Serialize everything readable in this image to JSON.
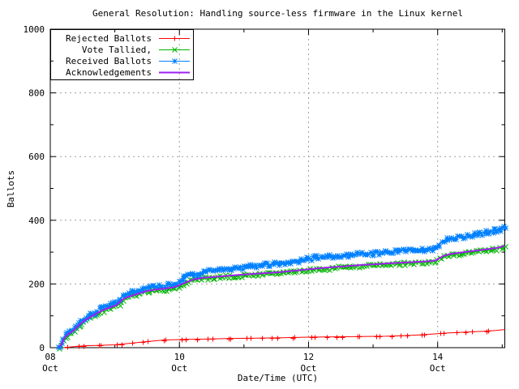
{
  "title": "General Resolution: Handling source-less firmware in the Linux kernel",
  "chart_data": {
    "type": "line",
    "title": "General Resolution: Handling source-less firmware in the Linux kernel",
    "xlabel": "Date/Time (UTC)",
    "ylabel": "Ballots",
    "x": {
      "domain_days": 7.04,
      "start_label": "08 Oct",
      "tick_days": [
        {
          "day": 0,
          "label": "08",
          "month": "Oct"
        },
        {
          "day": 2,
          "label": "10",
          "month": "Oct"
        },
        {
          "day": 4,
          "label": "12",
          "month": "Oct"
        },
        {
          "day": 6,
          "label": "14",
          "month": "Oct"
        }
      ],
      "minor_tick_days": [
        1,
        3,
        5,
        7
      ],
      "gridline_days": [
        2,
        4,
        6
      ]
    },
    "y": {
      "max": 1000,
      "major_step": 200,
      "minor_step": 100,
      "tick_labels": [
        "0",
        "200",
        "400",
        "600",
        "800",
        "1000"
      ],
      "gridlines": [
        200,
        400,
        600,
        800
      ]
    },
    "grid_on": true,
    "grid_color": "#9e9e9e",
    "frame_color": "#000000",
    "legend_position": "top-left-boxed",
    "series": [
      {
        "name": "Rejected Ballots",
        "color": "#ff0000",
        "marker": "plus",
        "points": [
          [
            0.2,
            0
          ],
          [
            0.3,
            2
          ],
          [
            0.4,
            4
          ],
          [
            0.55,
            6
          ],
          [
            0.7,
            7
          ],
          [
            0.85,
            8
          ],
          [
            1.0,
            9
          ],
          [
            1.15,
            12
          ],
          [
            1.3,
            15
          ],
          [
            1.45,
            18
          ],
          [
            1.6,
            21
          ],
          [
            1.75,
            24
          ],
          [
            1.9,
            25
          ],
          [
            2.1,
            26
          ],
          [
            2.4,
            27
          ],
          [
            2.8,
            29
          ],
          [
            3.2,
            30
          ],
          [
            3.6,
            31
          ],
          [
            4.0,
            33
          ],
          [
            4.4,
            34
          ],
          [
            4.8,
            35
          ],
          [
            5.2,
            36
          ],
          [
            5.5,
            38
          ],
          [
            5.8,
            41
          ],
          [
            6.0,
            44
          ],
          [
            6.15,
            46
          ],
          [
            6.35,
            48
          ],
          [
            6.55,
            50
          ],
          [
            6.75,
            52
          ],
          [
            6.9,
            54
          ],
          [
            7.04,
            57
          ]
        ]
      },
      {
        "name": "Vote Tallied,",
        "color": "#00b400",
        "marker": "x",
        "points": [
          [
            0.14,
            1
          ],
          [
            0.17,
            8
          ],
          [
            0.19,
            15
          ],
          [
            0.21,
            24
          ],
          [
            0.24,
            33
          ],
          [
            0.28,
            41
          ],
          [
            0.32,
            46
          ],
          [
            0.36,
            51
          ],
          [
            0.41,
            62
          ],
          [
            0.46,
            72
          ],
          [
            0.51,
            81
          ],
          [
            0.56,
            88
          ],
          [
            0.61,
            94
          ],
          [
            0.66,
            100
          ],
          [
            0.71,
            106
          ],
          [
            0.79,
            114
          ],
          [
            0.86,
            121
          ],
          [
            0.96,
            129
          ],
          [
            1.06,
            135
          ],
          [
            1.12,
            149
          ],
          [
            1.17,
            157
          ],
          [
            1.27,
            163
          ],
          [
            1.37,
            170
          ],
          [
            1.47,
            176
          ],
          [
            1.57,
            180
          ],
          [
            1.72,
            183
          ],
          [
            1.87,
            186
          ],
          [
            1.97,
            191
          ],
          [
            2.07,
            200
          ],
          [
            2.17,
            210
          ],
          [
            2.32,
            216
          ],
          [
            2.62,
            222
          ],
          [
            2.92,
            227
          ],
          [
            3.22,
            231
          ],
          [
            3.52,
            235
          ],
          [
            3.82,
            241
          ],
          [
            4.02,
            245
          ],
          [
            4.22,
            249
          ],
          [
            4.42,
            252
          ],
          [
            4.62,
            255
          ],
          [
            4.82,
            258
          ],
          [
            5.02,
            260
          ],
          [
            5.22,
            263
          ],
          [
            5.42,
            265
          ],
          [
            5.62,
            267
          ],
          [
            5.82,
            269
          ],
          [
            5.95,
            271
          ],
          [
            6.07,
            285
          ],
          [
            6.17,
            291
          ],
          [
            6.32,
            295
          ],
          [
            6.47,
            299
          ],
          [
            6.62,
            303
          ],
          [
            6.77,
            307
          ],
          [
            6.92,
            311
          ],
          [
            7.04,
            317
          ]
        ]
      },
      {
        "name": "Received Ballots",
        "color": "#0080ff",
        "marker": "star",
        "points": [
          [
            0.13,
            2
          ],
          [
            0.16,
            10
          ],
          [
            0.18,
            18
          ],
          [
            0.2,
            28
          ],
          [
            0.23,
            38
          ],
          [
            0.27,
            46
          ],
          [
            0.31,
            51
          ],
          [
            0.35,
            56
          ],
          [
            0.4,
            68
          ],
          [
            0.45,
            79
          ],
          [
            0.5,
            88
          ],
          [
            0.55,
            95
          ],
          [
            0.6,
            101
          ],
          [
            0.65,
            107
          ],
          [
            0.7,
            113
          ],
          [
            0.78,
            122
          ],
          [
            0.85,
            129
          ],
          [
            0.95,
            137
          ],
          [
            1.05,
            143
          ],
          [
            1.1,
            158
          ],
          [
            1.15,
            167
          ],
          [
            1.25,
            173
          ],
          [
            1.35,
            181
          ],
          [
            1.45,
            187
          ],
          [
            1.55,
            191
          ],
          [
            1.7,
            194
          ],
          [
            1.85,
            197
          ],
          [
            1.95,
            203
          ],
          [
            2.05,
            215
          ],
          [
            2.15,
            228
          ],
          [
            2.3,
            235
          ],
          [
            2.6,
            244
          ],
          [
            2.9,
            252
          ],
          [
            3.2,
            258
          ],
          [
            3.5,
            264
          ],
          [
            3.8,
            272
          ],
          [
            4.0,
            281
          ],
          [
            4.2,
            285
          ],
          [
            4.4,
            288
          ],
          [
            4.6,
            291
          ],
          [
            4.8,
            294
          ],
          [
            5.0,
            297
          ],
          [
            5.2,
            300
          ],
          [
            5.4,
            303
          ],
          [
            5.6,
            306
          ],
          [
            5.8,
            309
          ],
          [
            5.95,
            312
          ],
          [
            6.05,
            331
          ],
          [
            6.15,
            341
          ],
          [
            6.3,
            346
          ],
          [
            6.45,
            351
          ],
          [
            6.6,
            357
          ],
          [
            6.75,
            363
          ],
          [
            6.9,
            369
          ],
          [
            7.0,
            374
          ],
          [
            7.04,
            377
          ]
        ]
      },
      {
        "name": "Acknowledgements",
        "color": "#a020f0",
        "marker": "none",
        "points": [
          [
            0.14,
            3
          ],
          [
            0.18,
            13
          ],
          [
            0.21,
            27
          ],
          [
            0.25,
            37
          ],
          [
            0.3,
            46
          ],
          [
            0.36,
            54
          ],
          [
            0.42,
            66
          ],
          [
            0.48,
            77
          ],
          [
            0.54,
            87
          ],
          [
            0.6,
            94
          ],
          [
            0.67,
            102
          ],
          [
            0.74,
            110
          ],
          [
            0.82,
            118
          ],
          [
            0.92,
            126
          ],
          [
            1.02,
            133
          ],
          [
            1.1,
            148
          ],
          [
            1.16,
            156
          ],
          [
            1.28,
            164
          ],
          [
            1.4,
            172
          ],
          [
            1.5,
            178
          ],
          [
            1.62,
            182
          ],
          [
            1.75,
            185
          ],
          [
            1.9,
            189
          ],
          [
            2.0,
            196
          ],
          [
            2.1,
            205
          ],
          [
            2.2,
            213
          ],
          [
            2.35,
            219
          ],
          [
            2.65,
            224
          ],
          [
            2.95,
            229
          ],
          [
            3.25,
            233
          ],
          [
            3.55,
            237
          ],
          [
            3.85,
            243
          ],
          [
            4.05,
            247
          ],
          [
            4.25,
            251
          ],
          [
            4.45,
            254
          ],
          [
            4.65,
            257
          ],
          [
            4.85,
            260
          ],
          [
            5.05,
            262
          ],
          [
            5.25,
            265
          ],
          [
            5.45,
            267
          ],
          [
            5.65,
            269
          ],
          [
            5.85,
            271
          ],
          [
            5.97,
            274
          ],
          [
            6.09,
            288
          ],
          [
            6.19,
            294
          ],
          [
            6.34,
            298
          ],
          [
            6.49,
            302
          ],
          [
            6.64,
            306
          ],
          [
            6.79,
            310
          ],
          [
            6.94,
            314
          ],
          [
            7.04,
            320
          ]
        ]
      }
    ]
  }
}
